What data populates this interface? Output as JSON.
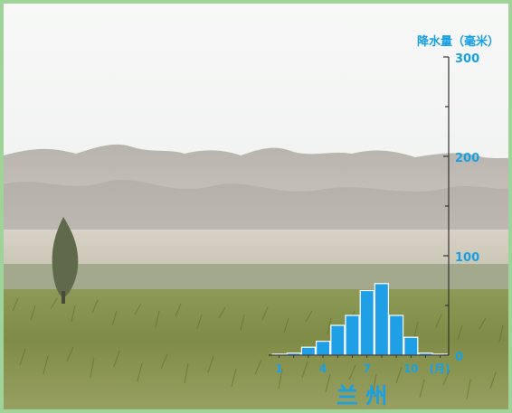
{
  "chart_data": {
    "type": "bar",
    "city": "兰 州",
    "ylabel": "降水量（毫米）",
    "ylim": [
      0,
      300
    ],
    "yticks": [
      "0",
      "100",
      "200",
      "300"
    ],
    "categories": [
      "1",
      "2",
      "3",
      "4",
      "5",
      "6",
      "7",
      "8",
      "9",
      "10",
      "11",
      "12"
    ],
    "xtick_labels": [
      "1",
      "",
      "",
      "4",
      "",
      "",
      "7",
      "",
      "",
      "10",
      "",
      ""
    ],
    "xunit": "(月)",
    "values": [
      1,
      2,
      8,
      14,
      30,
      40,
      65,
      72,
      40,
      18,
      2,
      1
    ],
    "colors": {
      "bar": "#1e9fe6",
      "bar_edge": "#ffffff",
      "label": "#18a0e4",
      "axis": "#333333"
    }
  }
}
